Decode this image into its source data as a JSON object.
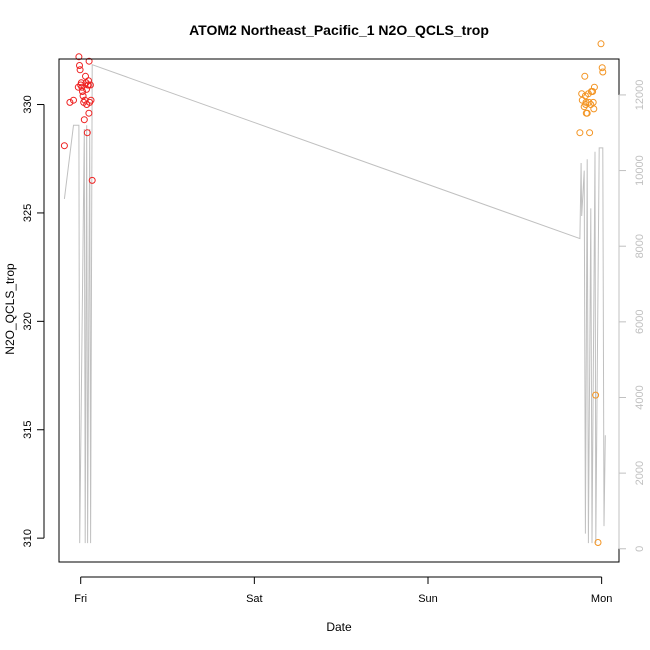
{
  "chart_data": {
    "type": "scatter",
    "title": "ATOM2 Northeast_Pacific_1 N2O_QCLS_trop",
    "xlabel": "Date",
    "ylabel": "N2O_QCLS_trop",
    "x_ticks": [
      "Fri",
      "Sat",
      "Sun",
      "Mon"
    ],
    "y_ticks": [
      310,
      315,
      320,
      325,
      330
    ],
    "y2_ticks": [
      0,
      2000,
      4000,
      6000,
      8000,
      10000,
      12000
    ],
    "ylim": [
      308.9,
      332.1
    ],
    "y2lim": [
      -350,
      12950
    ],
    "grid": false,
    "legend": "none",
    "colors": {
      "friday_points": "#ee2222",
      "monday_points": "#f39422",
      "altitude_line": "#c0c0c0",
      "axis": "#000000",
      "right_axis": "#c0c0c0"
    },
    "series": [
      {
        "values": [
          {
            "x": "Thu 21:45",
            "y": 328.1
          },
          {
            "x": "Thu 22:30",
            "y": 330.1
          },
          {
            "x": "Thu 23:00",
            "y": 330.2
          },
          {
            "x": "Thu 23:40",
            "y": 330.8
          },
          {
            "x": "Thu 23:45",
            "y": 332.2
          },
          {
            "x": "Thu 23:50",
            "y": 331.8
          },
          {
            "x": "Thu 23:55",
            "y": 331.6
          },
          {
            "x": "Fri 00:00",
            "y": 330.9
          },
          {
            "x": "Fri 00:05",
            "y": 331.0
          },
          {
            "x": "Fri 00:10",
            "y": 330.8
          },
          {
            "x": "Fri 00:15",
            "y": 330.6
          },
          {
            "x": "Fri 00:20",
            "y": 330.4
          },
          {
            "x": "Fri 00:25",
            "y": 330.1
          },
          {
            "x": "Fri 00:30",
            "y": 329.3
          },
          {
            "x": "Fri 00:35",
            "y": 330.2
          },
          {
            "x": "Fri 00:40",
            "y": 331.3
          },
          {
            "x": "Fri 00:45",
            "y": 331.0
          },
          {
            "x": "Fri 00:48",
            "y": 330.7
          },
          {
            "x": "Fri 00:50",
            "y": 330.0
          },
          {
            "x": "Fri 00:55",
            "y": 328.7
          },
          {
            "x": "Fri 01:00",
            "y": 330.9
          },
          {
            "x": "Fri 01:03",
            "y": 330.9
          },
          {
            "x": "Fri 01:05",
            "y": 331.1
          },
          {
            "x": "Fri 01:08",
            "y": 329.6
          },
          {
            "x": "Fri 01:10",
            "y": 332.0
          },
          {
            "x": "Fri 01:15",
            "y": 330.1
          },
          {
            "x": "Fri 01:20",
            "y": 330.9
          },
          {
            "x": "Fri 01:25",
            "y": 330.2
          },
          {
            "x": "Fri 01:35",
            "y": 326.5
          }
        ]
      },
      {
        "values": [
          {
            "x": "Sun 21:00",
            "y": 328.7
          },
          {
            "x": "Sun 21:15",
            "y": 330.5
          },
          {
            "x": "Sun 21:20",
            "y": 330.2
          },
          {
            "x": "Sun 21:35",
            "y": 329.9
          },
          {
            "x": "Sun 21:40",
            "y": 331.3
          },
          {
            "x": "Sun 21:45",
            "y": 330.4
          },
          {
            "x": "Sun 21:48",
            "y": 330.0
          },
          {
            "x": "Sun 21:50",
            "y": 330.1
          },
          {
            "x": "Sun 21:53",
            "y": 329.6
          },
          {
            "x": "Sun 22:00",
            "y": 329.6
          },
          {
            "x": "Sun 22:10",
            "y": 330.5
          },
          {
            "x": "Sun 22:15",
            "y": 330.1
          },
          {
            "x": "Sun 22:20",
            "y": 328.7
          },
          {
            "x": "Sun 22:30",
            "y": 330.0
          },
          {
            "x": "Sun 22:35",
            "y": 330.6
          },
          {
            "x": "Sun 22:45",
            "y": 330.6
          },
          {
            "x": "Sun 22:50",
            "y": 330.1
          },
          {
            "x": "Sun 22:55",
            "y": 329.8
          },
          {
            "x": "Sun 23:00",
            "y": 330.8
          },
          {
            "x": "Sun 23:10",
            "y": 316.6
          },
          {
            "x": "Sun 23:30",
            "y": 309.8
          },
          {
            "x": "Sun 23:55",
            "y": 332.8
          },
          {
            "x": "Mon 00:05",
            "y": 331.7
          },
          {
            "x": "Mon 00:10",
            "y": 331.5
          }
        ]
      }
    ],
    "altitude_line": [
      {
        "x": "Thu 21:45",
        "y2": 9250
      },
      {
        "x": "Thu 23:00",
        "y2": 11200
      },
      {
        "x": "Thu 23:45",
        "y2": 11200
      },
      {
        "x": "Thu 23:52",
        "y2": 150
      },
      {
        "x": "Fri 00:30",
        "y2": 11100
      },
      {
        "x": "Fri 00:37",
        "y2": 150
      },
      {
        "x": "Fri 00:50",
        "y2": 11200
      },
      {
        "x": "Fri 00:57",
        "y2": 150
      },
      {
        "x": "Fri 01:15",
        "y2": 11100
      },
      {
        "x": "Fri 01:22",
        "y2": 150
      },
      {
        "x": "Fri 01:35",
        "y2": 12800
      },
      {
        "x": "Sun 21:00",
        "y2": 8200
      },
      {
        "x": "Sun 21:10",
        "y2": 10200
      },
      {
        "x": "Sun 21:15",
        "y2": 8800
      },
      {
        "x": "Sun 21:35",
        "y2": 10000
      },
      {
        "x": "Sun 21:45",
        "y2": 400
      },
      {
        "x": "Sun 22:00",
        "y2": 10300
      },
      {
        "x": "Sun 22:10",
        "y2": 150
      },
      {
        "x": "Sun 22:30",
        "y2": 9000
      },
      {
        "x": "Sun 22:40",
        "y2": 150
      },
      {
        "x": "Sun 23:05",
        "y2": 10500
      },
      {
        "x": "Sun 23:12",
        "y2": 150
      },
      {
        "x": "Sun 23:40",
        "y2": 10600
      },
      {
        "x": "Mon 00:10",
        "y2": 10600
      },
      {
        "x": "Mon 00:20",
        "y2": 600
      },
      {
        "x": "Mon 00:30",
        "y2": 3000
      }
    ]
  }
}
